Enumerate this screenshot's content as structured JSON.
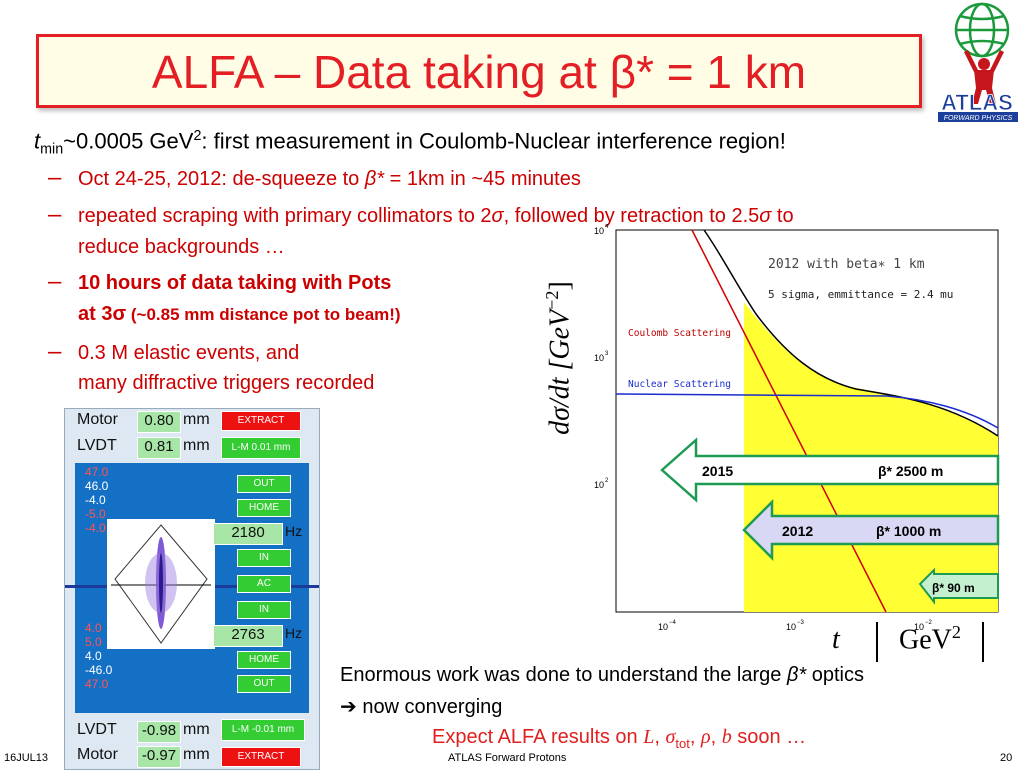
{
  "title": "ALFA – Data taking at β* = 1 km",
  "logo": {
    "text": "ATLAS",
    "subtext": "FORWARD PHYSICS"
  },
  "intro": {
    "t": "t",
    "sub": "min",
    "text1": "~0.0005 GeV",
    "sup": "2",
    "text2": ": first measurement in Coulomb-Nuclear interference region!"
  },
  "bullets": [
    {
      "dash": "–",
      "a": "Oct 24-25, 2012: de-squeeze to ",
      "sym": "β*",
      "b": " = 1km in ~45 minutes"
    },
    {
      "dash": "–",
      "a": "repeated scraping with primary collimators to 2",
      "sym1": "σ",
      "b": ", followed by retraction to 2.5",
      "sym2": "σ",
      "c": " to",
      "line2": "reduce backgrounds …"
    },
    {
      "dash": "–",
      "line1": "10 hours of data taking with Pots",
      "line2a": "at 3σ",
      "line2b": " (~0.85 mm distance pot to beam!)"
    },
    {
      "dash": "–",
      "line1": "0.3 M elastic events, and",
      "line2": "many diffractive triggers recorded"
    }
  ],
  "plot": {
    "ylabel": "dσ/dt  [GeV",
    "ylabel_sup": "−2",
    "ylabel_close": "]",
    "xlabel_t": "t",
    "xlabel_unit": "GeV",
    "xlabel_sup": "2",
    "legend1": "2012 with beta∗ 1 km",
    "legend2": "5 sigma, emmittance = 2.4 mu",
    "coulomb": "Coulomb Scattering",
    "nuclear": "Nuclear Scattering",
    "yticks": [
      {
        "base": "10",
        "exp": "4"
      },
      {
        "base": "10",
        "exp": "3"
      },
      {
        "base": "10",
        "exp": "2"
      }
    ],
    "xticks": [
      {
        "base": "10",
        "exp": "−4"
      },
      {
        "base": "10",
        "exp": "−3"
      },
      {
        "base": "10",
        "exp": "−2"
      }
    ],
    "arrow2015": {
      "year": "2015",
      "beta": "β* 2500 m"
    },
    "arrow2012": {
      "year": "2012",
      "beta": "β* 1000 m"
    },
    "arrow90": "β* 90 m"
  },
  "panel": {
    "motor_top": {
      "label": "Motor",
      "value": "0.80",
      "unit": "mm",
      "btn": "EXTRACT"
    },
    "lvdt_top": {
      "label": "LVDT",
      "value": "0.81",
      "unit": "mm",
      "btn": "L-M 0.01 mm"
    },
    "scale_top": [
      "47.0",
      "46.0",
      "-4.0",
      "-5.0",
      "-4.0"
    ],
    "scale_bot": [
      "4.0",
      "5.0",
      "4.0",
      "-46.0",
      "47.0"
    ],
    "btns": [
      "OUT",
      "HOME",
      "IN",
      "AC",
      "IN",
      "HOME",
      "OUT"
    ],
    "val1": "2180",
    "val2": "2763",
    "hz": "Hz",
    "lvdt_bot": {
      "label": "LVDT",
      "value": "-0.98",
      "unit": "mm",
      "btn": "L-M -0.01 mm"
    },
    "motor_bot": {
      "label": "Motor",
      "value": "-0.97",
      "unit": "mm",
      "btn": "EXTRACT"
    }
  },
  "conclusion": {
    "line1a": "Enormous work was done to understand the large ",
    "line1sym": "β*",
    "line1b": " optics",
    "line2": "➔ now converging",
    "line3a": "Expect ALFA results on ",
    "L": "L",
    "sep1": ", ",
    "sigma": "σ",
    "tot": "tot",
    "sep2": ", ",
    "rho": "ρ",
    "sep3": ", ",
    "b": "b",
    "line3b": " soon …"
  },
  "footer": {
    "date": "16JUL13",
    "center": "ATLAS Forward Protons",
    "page": "20"
  }
}
